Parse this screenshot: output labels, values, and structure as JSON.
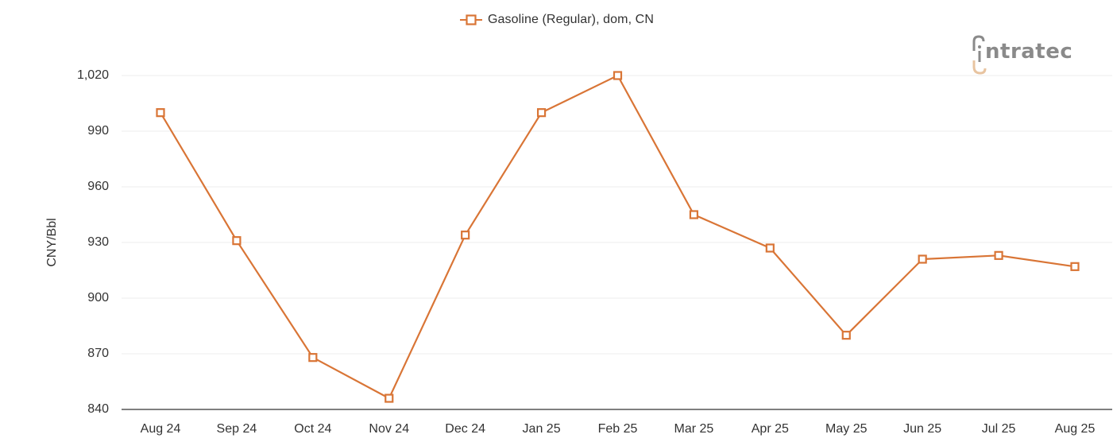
{
  "legend": {
    "label": "Gasoline (Regular), dom, CN",
    "marker": "hollow-square",
    "color": "#d97536"
  },
  "logo": {
    "text": "ntratec",
    "brand": "intratec"
  },
  "colors": {
    "series": "#d97536",
    "grid": "#eeeeee",
    "axis": "#555555",
    "text": "#333333",
    "logo_gray": "#8a8a8a",
    "logo_accent": "#e8c4a0"
  },
  "chart_data": {
    "type": "line",
    "title": "",
    "xlabel": "",
    "ylabel": "CNY/Bbl",
    "categories": [
      "Aug 24",
      "Sep 24",
      "Oct 24",
      "Nov 24",
      "Dec 24",
      "Jan 25",
      "Feb 25",
      "Mar 25",
      "Apr 25",
      "May 25",
      "Jun 25",
      "Jul 25",
      "Aug 25"
    ],
    "series": [
      {
        "name": "Gasoline (Regular), dom, CN",
        "values": [
          1000,
          931,
          868,
          846,
          934,
          1000,
          1020,
          945,
          927,
          880,
          921,
          923,
          917
        ]
      }
    ],
    "ylim": [
      840,
      1020
    ],
    "yticks": [
      840,
      870,
      900,
      930,
      960,
      990,
      1020
    ],
    "ytick_labels": [
      "840",
      "870",
      "900",
      "930",
      "960",
      "990",
      "1,020"
    ],
    "grid": true,
    "legend_position": "top-center",
    "marker": "hollow-square"
  }
}
